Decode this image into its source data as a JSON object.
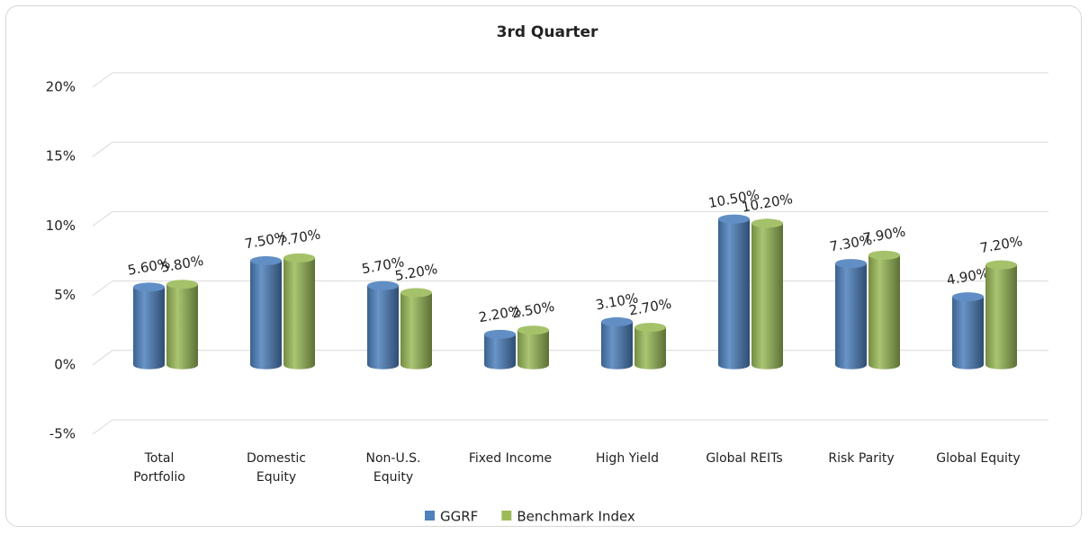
{
  "chart_data": {
    "type": "bar",
    "title": "3rd Quarter",
    "categories": [
      "Total Portfolio",
      "Domestic Equity",
      "Non-U.S. Equity",
      "Fixed Income",
      "High Yield",
      "Global REITs",
      "Risk Parity",
      "Global Equity"
    ],
    "series": [
      {
        "name": "GGRF",
        "color": "#4f81bd",
        "values": [
          5.6,
          7.5,
          5.7,
          2.2,
          3.1,
          10.5,
          7.3,
          4.9
        ],
        "value_labels": [
          "5.60%",
          "7.50%",
          "5.70%",
          "2.20%",
          "3.10%",
          "10.50%",
          "7.30%",
          "4.90%"
        ]
      },
      {
        "name": "Benchmark Index",
        "color": "#9bbb59",
        "values": [
          5.8,
          7.7,
          5.2,
          2.5,
          2.7,
          10.2,
          7.9,
          7.2
        ],
        "value_labels": [
          "5.80%",
          "7.70%",
          "5.20%",
          "2.50%",
          "2.70%",
          "10.20%",
          "7.90%",
          "7.20%"
        ]
      }
    ],
    "ylim": [
      -5,
      20
    ],
    "yticks": [
      {
        "value": -5,
        "label": "-5%"
      },
      {
        "value": 0,
        "label": "0%"
      },
      {
        "value": 5,
        "label": "5%"
      },
      {
        "value": 10,
        "label": "10%"
      },
      {
        "value": 15,
        "label": "15%"
      },
      {
        "value": 20,
        "label": "20%"
      }
    ],
    "grid": true,
    "legend": "bottom"
  }
}
